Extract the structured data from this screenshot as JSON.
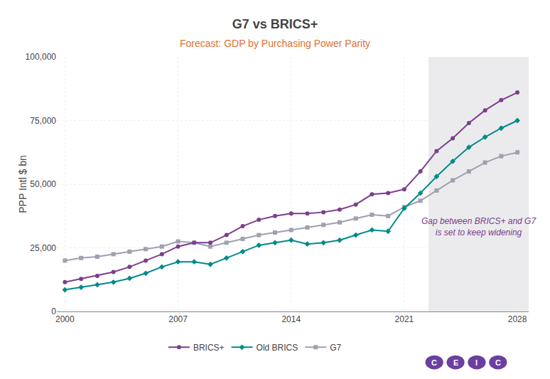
{
  "chart_data": {
    "type": "line",
    "title": "G7 vs BRICS+",
    "subtitle": "Forecast: GDP by Purchasing Power Parity",
    "subtitle_color": "#e07030",
    "ylabel": "PPP Intl $ bn",
    "annotation": "Gap between BRICS+ and G7\nis set to keep widening",
    "annotation_color": "#7b3f8c",
    "forecast_start": 2022.5,
    "forecast_color": "#ebebed",
    "x": [
      2000,
      2001,
      2002,
      2003,
      2004,
      2005,
      2006,
      2007,
      2008,
      2009,
      2010,
      2011,
      2012,
      2013,
      2014,
      2015,
      2016,
      2017,
      2018,
      2019,
      2020,
      2021,
      2022,
      2023,
      2024,
      2025,
      2026,
      2027,
      2028
    ],
    "series": [
      {
        "name": "G7",
        "color": "#a0a0b0",
        "marker": "square",
        "values": [
          20000,
          21000,
          21500,
          22500,
          23500,
          24500,
          25500,
          27500,
          27000,
          25500,
          27000,
          28500,
          30000,
          31000,
          32000,
          33000,
          34000,
          35000,
          36500,
          38000,
          37500,
          41000,
          43500,
          47500,
          51500,
          55000,
          58500,
          61000,
          62500
        ]
      },
      {
        "name": "Old BRICS",
        "color": "#008b8b",
        "marker": "diamond",
        "values": [
          8500,
          9500,
          10500,
          11500,
          13000,
          15000,
          17500,
          19500,
          19500,
          18500,
          21000,
          23500,
          26000,
          27000,
          28000,
          26500,
          27000,
          28000,
          30000,
          32000,
          31500,
          40500,
          46500,
          53000,
          59000,
          64500,
          68500,
          72000,
          75000
        ]
      },
      {
        "name": "BRICS+",
        "color": "#7b3f8c",
        "marker": "circle",
        "values": [
          11500,
          12800,
          14000,
          15500,
          17500,
          20000,
          22500,
          25500,
          27000,
          27000,
          30000,
          33500,
          36000,
          37500,
          38500,
          38500,
          39000,
          40000,
          42000,
          46000,
          46500,
          48000,
          55000,
          63000,
          68000,
          74000,
          79000,
          83000,
          86000
        ]
      }
    ],
    "xlim": [
      1999.5,
      2028.7
    ],
    "xticks": [
      2000,
      2007,
      2014,
      2021,
      2028
    ],
    "ylim": [
      0,
      100000
    ],
    "yticks": [
      0,
      {
        "value": 25000,
        "label": "25,000"
      },
      {
        "value": 50000,
        "label": "50,000"
      },
      {
        "value": 75000,
        "label": "75,000"
      },
      {
        "value": 100000,
        "label": "100,000"
      }
    ],
    "grid": true,
    "legend": "lower center",
    "logo": {
      "letters": [
        "C",
        "E",
        "I",
        "C"
      ],
      "color": "#6b3fa0"
    }
  }
}
